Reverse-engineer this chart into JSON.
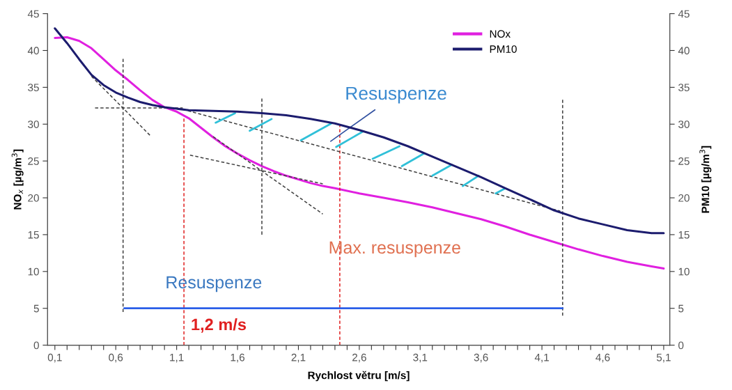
{
  "chart_data": {
    "type": "line",
    "xlabel": "Rychlost větru [m/s]",
    "ylabel": "NO$_{x}$ [µg/m$^{3}$]",
    "y2label": "PM10 [µg/m$^{3}$]",
    "xlim": [
      0.04,
      5.15
    ],
    "ylim": [
      0,
      45
    ],
    "y2lim": [
      0,
      45
    ],
    "xticks": [
      {
        "value": 0.1,
        "label": "0,1"
      },
      {
        "value": 0.2,
        "label": null
      },
      {
        "value": 0.3,
        "label": null
      },
      {
        "value": 0.4,
        "label": null
      },
      {
        "value": 0.5,
        "label": null
      },
      {
        "value": 0.6,
        "label": "0,6"
      },
      {
        "value": 0.7,
        "label": null
      },
      {
        "value": 0.8,
        "label": null
      },
      {
        "value": 0.9,
        "label": null
      },
      {
        "value": 1.0,
        "label": null
      },
      {
        "value": 1.1,
        "label": "1,1"
      },
      {
        "value": 1.2,
        "label": null
      },
      {
        "value": 1.3,
        "label": null
      },
      {
        "value": 1.4,
        "label": null
      },
      {
        "value": 1.5,
        "label": null
      },
      {
        "value": 1.6,
        "label": "1,6"
      },
      {
        "value": 1.7,
        "label": null
      },
      {
        "value": 1.8,
        "label": null
      },
      {
        "value": 1.9,
        "label": null
      },
      {
        "value": 2.0,
        "label": null
      },
      {
        "value": 2.1,
        "label": "2,1"
      },
      {
        "value": 2.2,
        "label": null
      },
      {
        "value": 2.3,
        "label": null
      },
      {
        "value": 2.4,
        "label": null
      },
      {
        "value": 2.5,
        "label": null
      },
      {
        "value": 2.6,
        "label": "2,6"
      },
      {
        "value": 2.7,
        "label": null
      },
      {
        "value": 2.8,
        "label": null
      },
      {
        "value": 2.9,
        "label": null
      },
      {
        "value": 3.0,
        "label": null
      },
      {
        "value": 3.1,
        "label": "3,1"
      },
      {
        "value": 3.2,
        "label": null
      },
      {
        "value": 3.3,
        "label": null
      },
      {
        "value": 3.4,
        "label": null
      },
      {
        "value": 3.5,
        "label": null
      },
      {
        "value": 3.6,
        "label": "3,6"
      },
      {
        "value": 3.7,
        "label": null
      },
      {
        "value": 3.8,
        "label": null
      },
      {
        "value": 3.9,
        "label": null
      },
      {
        "value": 4.0,
        "label": null
      },
      {
        "value": 4.1,
        "label": "4,1"
      },
      {
        "value": 4.2,
        "label": null
      },
      {
        "value": 4.3,
        "label": null
      },
      {
        "value": 4.4,
        "label": null
      },
      {
        "value": 4.5,
        "label": null
      },
      {
        "value": 4.6,
        "label": "4,6"
      },
      {
        "value": 4.7,
        "label": null
      },
      {
        "value": 4.8,
        "label": null
      },
      {
        "value": 4.9,
        "label": null
      },
      {
        "value": 5.0,
        "label": null
      },
      {
        "value": 5.1,
        "label": "5,1"
      }
    ],
    "yticks": [
      0,
      5,
      10,
      15,
      20,
      25,
      30,
      35,
      40,
      45
    ],
    "y2ticks": [
      0,
      5,
      10,
      15,
      20,
      25,
      30,
      35,
      40,
      45
    ],
    "grid": false,
    "legend": "top right",
    "marker": "none",
    "series": [
      {
        "name": "NOx",
        "color": "#e020e0",
        "x": [
          0.1,
          0.2,
          0.3,
          0.4,
          0.5,
          0.6,
          0.7,
          0.8,
          0.9,
          1.0,
          1.1,
          1.2,
          1.3,
          1.4,
          1.5,
          1.6,
          1.7,
          1.8,
          1.9,
          2.0,
          2.1,
          2.2,
          2.3,
          2.4,
          2.6,
          2.8,
          3.0,
          3.2,
          3.4,
          3.6,
          3.8,
          4.0,
          4.2,
          4.4,
          4.6,
          4.8,
          5.0,
          5.1
        ],
        "values": [
          41.7,
          41.8,
          41.3,
          40.3,
          38.8,
          37.3,
          36,
          34.6,
          33.3,
          32.3,
          31.7,
          30.8,
          29.5,
          28.2,
          27,
          26,
          25.1,
          24.3,
          23.6,
          23,
          22.5,
          22,
          21.6,
          21.3,
          20.6,
          20,
          19.4,
          18.7,
          17.9,
          17.1,
          16.1,
          15,
          14,
          13,
          12.1,
          11.3,
          10.7,
          10.4
        ]
      },
      {
        "name": "PM10",
        "color": "#1c1c6e",
        "axis": "y2",
        "x": [
          0.1,
          0.2,
          0.3,
          0.4,
          0.5,
          0.6,
          0.7,
          0.8,
          0.9,
          1.0,
          1.1,
          1.2,
          1.4,
          1.6,
          1.8,
          2.0,
          2.2,
          2.4,
          2.6,
          2.8,
          3.0,
          3.2,
          3.4,
          3.6,
          3.8,
          4.0,
          4.2,
          4.4,
          4.6,
          4.8,
          5.0,
          5.1
        ],
        "values": [
          43,
          41,
          38.8,
          36.7,
          35.3,
          34.3,
          33.6,
          33,
          32.6,
          32.3,
          32.1,
          31.9,
          31.8,
          31.7,
          31.5,
          31.2,
          30.7,
          30.1,
          29.2,
          28.2,
          27,
          25.6,
          24.2,
          22.8,
          21.3,
          19.8,
          18.3,
          17.2,
          16.4,
          15.6,
          15.2,
          15.2
        ]
      },
      {
        "color": "#404040",
        "line_style": "dashed",
        "x": [
          0.66,
          0.66
        ],
        "values": [
          4.5,
          39
        ]
      },
      {
        "color": "#404040",
        "line_style": "dashed",
        "x": [
          1.8,
          1.8
        ],
        "values": [
          15,
          33.7
        ]
      },
      {
        "color": "#404040",
        "line_style": "dashed",
        "x": [
          4.27,
          4.27
        ],
        "values": [
          4,
          33.4
        ]
      },
      {
        "color": "#e02020",
        "line_style": "dashed",
        "x": [
          1.16,
          1.16
        ],
        "values": [
          0,
          31
        ]
      },
      {
        "color": "#e02020",
        "line_style": "dashed",
        "x": [
          2.44,
          2.44
        ],
        "values": [
          0,
          30
        ]
      },
      {
        "color": "#404040",
        "line_style": "dashed",
        "x": [
          0.4,
          0.88
        ],
        "values": [
          36.5,
          28.5
        ]
      },
      {
        "color": "#404040",
        "line_style": "dashed",
        "x": [
          0.43,
          1.15
        ],
        "values": [
          32.2,
          32.2
        ]
      },
      {
        "color": "#404040",
        "line_style": "dashed",
        "x": [
          1.15,
          4.25
        ],
        "values": [
          32,
          18.2
        ]
      },
      {
        "color": "#404040",
        "line_style": "dashed",
        "x": [
          1.4,
          2.3
        ],
        "values": [
          28.3,
          17.8
        ]
      },
      {
        "color": "#404040",
        "line_style": "dashed",
        "x": [
          1.21,
          2.3
        ],
        "values": [
          25.8,
          21.9
        ]
      },
      {
        "color": "#2a5ee8",
        "x": [
          0.67,
          4.27
        ],
        "values": [
          5,
          5
        ]
      },
      {
        "color": "#30c0d8",
        "x": [
          1.42,
          1.58,
          null,
          1.7,
          1.88,
          null,
          2.12,
          2.37,
          null,
          2.41,
          2.63,
          null,
          2.71,
          2.93,
          null,
          2.95,
          3.13,
          null,
          3.2,
          3.36,
          null,
          3.45,
          3.58,
          null,
          3.72,
          3.79
        ],
        "values": [
          30.2,
          31.5,
          null,
          29.1,
          30.7,
          null,
          27.8,
          30.1,
          null,
          26.9,
          29.0,
          null,
          25.3,
          27.0,
          null,
          24.3,
          26.0,
          null,
          23.0,
          24.5,
          null,
          21.6,
          23.0,
          null,
          20.6,
          21.2
        ]
      }
    ],
    "annotations": [
      "Resuspenze",
      "Max. resuspenze",
      "Resuspenze",
      "1,2 m/s"
    ]
  }
}
